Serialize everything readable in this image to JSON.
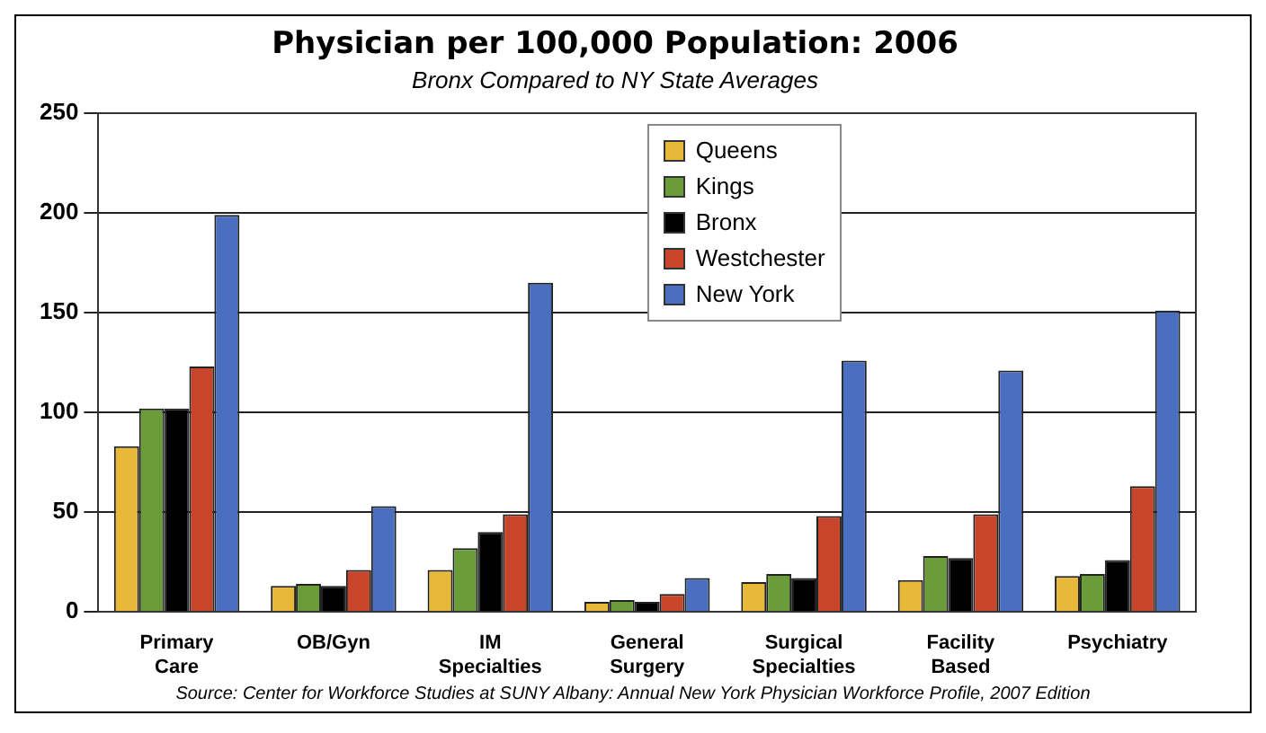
{
  "chart_data": {
    "type": "bar",
    "title": "Physician per 100,000 Population: 2006",
    "subtitle": "Bronx Compared to NY State Averages",
    "categories": [
      "Primary Care",
      "OB/Gyn",
      "IM Specialties",
      "General Surgery",
      "Surgical Specialties",
      "Facility Based",
      "Psychiatry"
    ],
    "series": [
      {
        "name": "Queens",
        "color": "#e8b838",
        "values": [
          83,
          13,
          21,
          5,
          15,
          16,
          18
        ]
      },
      {
        "name": "Kings",
        "color": "#6a9c3a",
        "values": [
          102,
          14,
          32,
          6,
          19,
          28,
          19
        ]
      },
      {
        "name": "Bronx",
        "color": "#000000",
        "values": [
          102,
          13,
          40,
          5,
          17,
          27,
          26
        ]
      },
      {
        "name": "Westchester",
        "color": "#c8442a",
        "values": [
          123,
          21,
          49,
          9,
          48,
          49,
          63
        ]
      },
      {
        "name": "New York",
        "color": "#4a6fc0",
        "values": [
          199,
          53,
          165,
          17,
          126,
          121,
          151
        ]
      }
    ],
    "ylim": [
      0,
      250
    ],
    "yticks": [
      0,
      50,
      100,
      150,
      200,
      250
    ],
    "grid": "y",
    "legend": "top right",
    "annotations": [
      "Source: Center for Workforce Studies at SUNY Albany: Annual New York Physician Workforce Profile, 2007 Edition"
    ]
  }
}
